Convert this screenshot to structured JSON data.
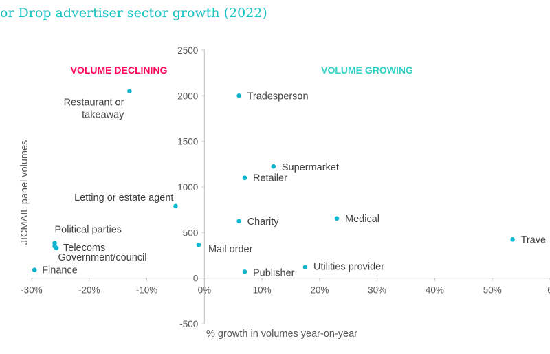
{
  "title": "or Drop advertiser sector growth (2022)",
  "colors": {
    "point": "#11b5cf",
    "declining": "#ff0a5a",
    "growing": "#2fd1c3",
    "axis": "#bfbfbf",
    "title": "#19c3c3"
  },
  "chart_data": {
    "type": "scatter",
    "title": "or Drop advertiser sector growth (2022)",
    "xlabel": "% growth in volumes year-on-year",
    "ylabel": "JICMAIL panel volumes",
    "xlim": [
      -30,
      60
    ],
    "ylim": [
      -500,
      2500
    ],
    "x_ticks": [
      "-30%",
      "-20%",
      "-10%",
      "0%",
      "10%",
      "20%",
      "30%",
      "40%",
      "50%",
      "6"
    ],
    "y_ticks": [
      "2500",
      "2000",
      "1500",
      "1000",
      "500",
      "0",
      "-500"
    ],
    "annotations": {
      "declining": "VOLUME DECLINING",
      "growing": "VOLUME GROWING"
    },
    "points": [
      {
        "label": "Restaurant or takeaway",
        "lines": [
          "Restaurant or",
          "takeaway"
        ],
        "x": -13,
        "y": 2050
      },
      {
        "label": "Tradesperson",
        "x": 6,
        "y": 2000
      },
      {
        "label": "Supermarket",
        "x": 12,
        "y": 1225
      },
      {
        "label": "Retailer",
        "x": 7,
        "y": 1100
      },
      {
        "label": "Letting or estate agent",
        "x": -5,
        "y": 790
      },
      {
        "label": "Charity",
        "x": 6,
        "y": 625
      },
      {
        "label": "Medical",
        "x": 23,
        "y": 655
      },
      {
        "label": "Political parties",
        "x": -26,
        "y": 385
      },
      {
        "label": "Telecoms",
        "x": -25.7,
        "y": 330
      },
      {
        "label": "Mail order",
        "x": -1,
        "y": 365
      },
      {
        "label": "Government/council",
        "x": -26,
        "y": 350
      },
      {
        "label": "Finance",
        "x": -29.5,
        "y": 90
      },
      {
        "label": "Publisher",
        "x": 7,
        "y": 70
      },
      {
        "label": "Utilities provider",
        "x": 17.5,
        "y": 120
      },
      {
        "label": "Travel",
        "display": "Trave",
        "x": 53.5,
        "y": 425
      }
    ]
  }
}
